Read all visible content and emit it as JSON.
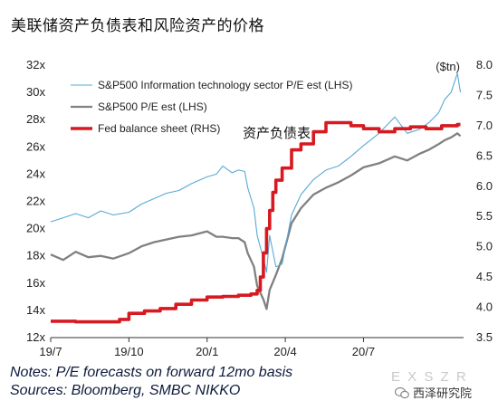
{
  "title": "美联储资产负债表和风险资产的价格",
  "notes": [
    "Notes: P/E forecasts on forward 12mo basis",
    "Sources: Bloomberg, SMBC NIKKO"
  ],
  "watermark": {
    "faint": "E X S Z R",
    "brand": "西泽研究院",
    "icon": "wechat-icon"
  },
  "colors": {
    "it": "#5aa8d6",
    "sp": "#808080",
    "fed": "#d71920"
  },
  "chart_data": {
    "type": "line",
    "annotation": "资产负债表",
    "y_left": {
      "range": [
        12,
        32
      ],
      "ticks": [
        12,
        14,
        16,
        18,
        20,
        22,
        24,
        26,
        28,
        30,
        32
      ],
      "tick_labels": [
        "12x",
        "14x",
        "16x",
        "18x",
        "20x",
        "22x",
        "24x",
        "26x",
        "28x",
        "30x",
        "32x"
      ]
    },
    "y_right": {
      "label": "($tn)",
      "range": [
        3.5,
        8.0
      ],
      "ticks": [
        3.5,
        4.0,
        4.5,
        5.0,
        5.5,
        6.0,
        6.5,
        7.0,
        7.5,
        8.0
      ],
      "tick_labels": [
        "3.5",
        "4.0",
        "4.5",
        "5.0",
        "5.5",
        "6.0",
        "6.5",
        "7.0",
        "7.5",
        "8.0"
      ]
    },
    "x_axis": {
      "range": [
        2019.5,
        2020.82
      ],
      "ticks": [
        2019.5,
        2019.75,
        2020.0,
        2020.25,
        2020.5
      ],
      "tick_labels": [
        "19/7",
        "19/10",
        "20/1",
        "20/4",
        "20/7"
      ]
    },
    "legend": {
      "position": "top-left"
    },
    "series": [
      {
        "name": "S&P500 Information technology sector P/E est (LHS)",
        "axis": "left",
        "style": "thin",
        "x": [
          2019.5,
          2019.54,
          2019.58,
          2019.62,
          2019.66,
          2019.7,
          2019.75,
          2019.79,
          2019.83,
          2019.87,
          2019.91,
          2019.95,
          2020.0,
          2020.03,
          2020.05,
          2020.08,
          2020.1,
          2020.12,
          2020.13,
          2020.15,
          2020.16,
          2020.18,
          2020.19,
          2020.2,
          2020.22,
          2020.24,
          2020.27,
          2020.3,
          2020.34,
          2020.38,
          2020.42,
          2020.46,
          2020.5,
          2020.55,
          2020.6,
          2020.64,
          2020.68,
          2020.71,
          2020.74,
          2020.76,
          2020.78,
          2020.8,
          2020.81
        ],
        "y": [
          20.5,
          20.8,
          21.1,
          20.8,
          21.3,
          21.0,
          21.2,
          21.8,
          22.2,
          22.6,
          22.8,
          23.3,
          23.8,
          24.0,
          24.6,
          24.1,
          24.3,
          24.2,
          23.0,
          21.5,
          19.5,
          17.8,
          16.8,
          19.5,
          17.2,
          17.4,
          21.0,
          22.5,
          23.6,
          24.3,
          24.6,
          25.3,
          26.1,
          27.0,
          28.2,
          27.0,
          27.3,
          27.8,
          28.5,
          29.5,
          30.0,
          31.4,
          30.0
        ]
      },
      {
        "name": "S&P500 P/E est (LHS)",
        "axis": "left",
        "style": "medium",
        "x": [
          2019.5,
          2019.54,
          2019.58,
          2019.62,
          2019.66,
          2019.7,
          2019.75,
          2019.79,
          2019.83,
          2019.87,
          2019.91,
          2019.95,
          2020.0,
          2020.03,
          2020.05,
          2020.08,
          2020.1,
          2020.12,
          2020.13,
          2020.15,
          2020.16,
          2020.18,
          2020.19,
          2020.2,
          2020.22,
          2020.24,
          2020.27,
          2020.3,
          2020.34,
          2020.38,
          2020.42,
          2020.46,
          2020.5,
          2020.55,
          2020.6,
          2020.64,
          2020.68,
          2020.71,
          2020.74,
          2020.76,
          2020.78,
          2020.8,
          2020.81
        ],
        "y": [
          18.1,
          17.7,
          18.3,
          17.9,
          18.0,
          17.8,
          18.2,
          18.7,
          19.0,
          19.2,
          19.4,
          19.5,
          19.8,
          19.4,
          19.4,
          19.3,
          19.3,
          19.0,
          18.2,
          17.2,
          15.8,
          14.8,
          14.1,
          15.5,
          16.6,
          17.8,
          20.4,
          21.5,
          22.5,
          23.0,
          23.4,
          23.9,
          24.5,
          24.8,
          25.3,
          25.0,
          25.5,
          25.8,
          26.2,
          26.5,
          26.7,
          27.0,
          26.8
        ]
      },
      {
        "name": "Fed balance sheet (RHS)",
        "axis": "right",
        "style": "thick",
        "x": [
          2019.5,
          2019.58,
          2019.66,
          2019.72,
          2019.75,
          2019.8,
          2019.85,
          2019.9,
          2019.95,
          2020.0,
          2020.05,
          2020.1,
          2020.14,
          2020.16,
          2020.17,
          2020.18,
          2020.19,
          2020.2,
          2020.21,
          2020.22,
          2020.24,
          2020.27,
          2020.3,
          2020.34,
          2020.38,
          2020.42,
          2020.46,
          2020.5,
          2020.55,
          2020.6,
          2020.65,
          2020.7,
          2020.75,
          2020.8,
          2020.81
        ],
        "y": [
          3.77,
          3.76,
          3.76,
          3.8,
          3.9,
          3.94,
          3.98,
          4.05,
          4.12,
          4.17,
          4.18,
          4.2,
          4.22,
          4.28,
          4.5,
          4.9,
          5.3,
          5.6,
          5.9,
          6.1,
          6.3,
          6.6,
          6.7,
          6.9,
          7.05,
          7.05,
          7.0,
          6.95,
          6.9,
          6.95,
          6.98,
          6.95,
          7.0,
          7.02,
          7.02
        ]
      }
    ]
  }
}
